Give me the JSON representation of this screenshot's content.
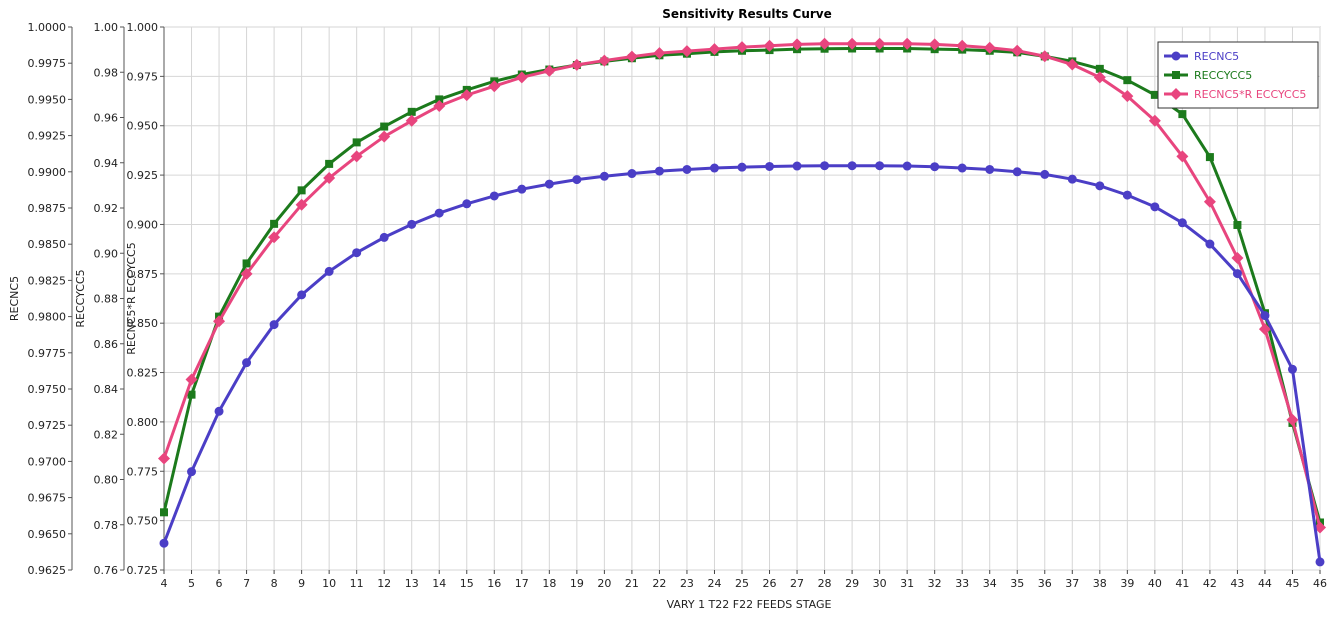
{
  "chart_data": {
    "type": "line",
    "title": "Sensitivity Results Curve",
    "xlabel": "VARY   1 T22  F22 FEEDS STAGE",
    "x": [
      4,
      5,
      6,
      7,
      8,
      9,
      10,
      11,
      12,
      13,
      14,
      15,
      16,
      17,
      18,
      19,
      20,
      21,
      22,
      23,
      24,
      25,
      26,
      27,
      28,
      29,
      30,
      31,
      32,
      33,
      34,
      35,
      36,
      37,
      38,
      39,
      40,
      41,
      42,
      43,
      44,
      45,
      46
    ],
    "xlim": [
      4,
      46
    ],
    "grid": true,
    "legend_position": "top-right",
    "axes": [
      {
        "id": "axis1",
        "label": "RECNC5",
        "range": [
          0.9625,
          1.0
        ],
        "ticks": [
          "0.9625",
          "0.9650",
          "0.9675",
          "0.9700",
          "0.9725",
          "0.9750",
          "0.9775",
          "0.9800",
          "0.9825",
          "0.9850",
          "0.9875",
          "0.9900",
          "0.9925",
          "0.9950",
          "0.9975",
          "1.0000"
        ]
      },
      {
        "id": "axis2",
        "label": "RECCYCC5",
        "range": [
          0.76,
          1.0
        ],
        "ticks": [
          "0.76",
          "0.78",
          "0.80",
          "0.82",
          "0.84",
          "0.86",
          "0.88",
          "0.90",
          "0.92",
          "0.94",
          "0.96",
          "0.98",
          "1.00"
        ]
      },
      {
        "id": "axis3",
        "label": "RECNC5*R ECCYCC5",
        "range": [
          0.725,
          1.0
        ],
        "ticks": [
          "0.725",
          "0.750",
          "0.775",
          "0.800",
          "0.825",
          "0.850",
          "0.875",
          "0.900",
          "0.925",
          "0.950",
          "0.975",
          "1.000"
        ]
      }
    ],
    "series": [
      {
        "name": "RECNC5",
        "axis": "axis1",
        "color": "#4b3ec6",
        "marker": "circle",
        "values": [
          0.96435,
          0.96929,
          0.97346,
          0.97682,
          0.97945,
          0.9815,
          0.98312,
          0.98441,
          0.98547,
          0.98637,
          0.98715,
          0.98779,
          0.98833,
          0.9888,
          0.98915,
          0.98946,
          0.98969,
          0.98988,
          0.99005,
          0.99016,
          0.99026,
          0.99032,
          0.99037,
          0.9904,
          0.99042,
          0.99042,
          0.99042,
          0.9904,
          0.99035,
          0.99026,
          0.99016,
          0.99,
          0.98982,
          0.98949,
          0.98903,
          0.98839,
          0.98758,
          0.98648,
          0.98501,
          0.98297,
          0.98007,
          0.97636,
          0.96306
        ]
      },
      {
        "name": "RECCYCC5",
        "axis": "axis2",
        "color": "#1c7a1c",
        "marker": "square",
        "values": [
          0.7855,
          0.8375,
          0.872,
          0.8955,
          0.913,
          0.9278,
          0.9395,
          0.949,
          0.956,
          0.9625,
          0.968,
          0.9722,
          0.976,
          0.979,
          0.9812,
          0.9832,
          0.9848,
          0.9862,
          0.9875,
          0.9882,
          0.989,
          0.9895,
          0.9898,
          0.9902,
          0.9904,
          0.9905,
          0.9905,
          0.9905,
          0.9902,
          0.99,
          0.9895,
          0.9888,
          0.987,
          0.9848,
          0.9815,
          0.9765,
          0.97,
          0.9615,
          0.9425,
          0.9125,
          0.8735,
          0.825,
          0.781
        ]
      },
      {
        "name": "RECNC5*R ECCYCC5",
        "axis": "axis3",
        "color": "#e8457e",
        "marker": "diamond",
        "values": [
          0.7815,
          0.8215,
          0.851,
          0.875,
          0.8935,
          0.91,
          0.9235,
          0.9345,
          0.9445,
          0.9525,
          0.96,
          0.9655,
          0.97,
          0.9745,
          0.9778,
          0.9808,
          0.983,
          0.985,
          0.9868,
          0.9878,
          0.9888,
          0.9898,
          0.9905,
          0.9912,
          0.9915,
          0.9915,
          0.9915,
          0.9915,
          0.9912,
          0.9905,
          0.9895,
          0.988,
          0.9852,
          0.981,
          0.9745,
          0.965,
          0.9525,
          0.9345,
          0.9115,
          0.883,
          0.847,
          0.801,
          0.7465
        ]
      }
    ]
  }
}
